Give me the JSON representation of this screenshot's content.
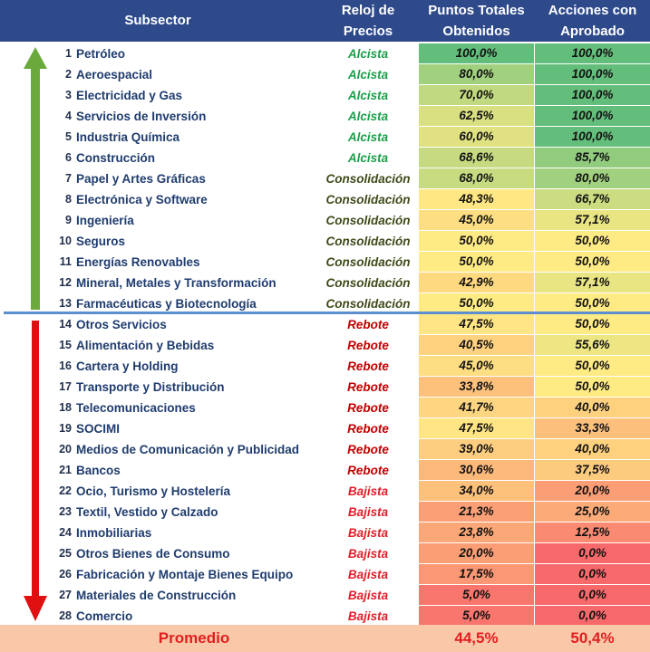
{
  "header": {
    "col_subsector": "Subsector",
    "col_reloj_line1": "Reloj de",
    "col_reloj_line2": "Precios",
    "col_puntos_line1": "Puntos Totales",
    "col_puntos_line2": "Obtenidos",
    "col_acciones_line1": "Acciones con",
    "col_acciones_line2": "Aprobado"
  },
  "colors": {
    "header_bg": "#2f4a8a",
    "alcista": "#1aa04a",
    "consolidacion": "#3d4a18",
    "rebote": "#c00000",
    "bajista": "#e0202a",
    "green_arrow": "#6aaa3c",
    "red_arrow": "#e01010",
    "divider": "#5b8fd0",
    "footer_bg": "#f9c8a8"
  },
  "rows": [
    {
      "num": "1",
      "name": "Petróleo",
      "trend": "Alcista",
      "puntos": "100,0%",
      "acciones": "100,0%",
      "puntos_val": 100.0,
      "acciones_val": 100.0
    },
    {
      "num": "2",
      "name": "Aeroespacial",
      "trend": "Alcista",
      "puntos": "80,0%",
      "acciones": "100,0%",
      "puntos_val": 80.0,
      "acciones_val": 100.0
    },
    {
      "num": "3",
      "name": "Electricidad y Gas",
      "trend": "Alcista",
      "puntos": "70,0%",
      "acciones": "100,0%",
      "puntos_val": 70.0,
      "acciones_val": 100.0
    },
    {
      "num": "4",
      "name": "Servicios de Inversión",
      "trend": "Alcista",
      "puntos": "62,5%",
      "acciones": "100,0%",
      "puntos_val": 62.5,
      "acciones_val": 100.0
    },
    {
      "num": "5",
      "name": "Industria Química",
      "trend": "Alcista",
      "puntos": "60,0%",
      "acciones": "100,0%",
      "puntos_val": 60.0,
      "acciones_val": 100.0
    },
    {
      "num": "6",
      "name": "Construcción",
      "trend": "Alcista",
      "puntos": "68,6%",
      "acciones": "85,7%",
      "puntos_val": 68.6,
      "acciones_val": 85.7
    },
    {
      "num": "7",
      "name": "Papel y Artes Gráficas",
      "trend": "Consolidación",
      "puntos": "68,0%",
      "acciones": "80,0%",
      "puntos_val": 68.0,
      "acciones_val": 80.0
    },
    {
      "num": "8",
      "name": "Electrónica y Software",
      "trend": "Consolidación",
      "puntos": "48,3%",
      "acciones": "66,7%",
      "puntos_val": 48.3,
      "acciones_val": 66.7
    },
    {
      "num": "9",
      "name": "Ingeniería",
      "trend": "Consolidación",
      "puntos": "45,0%",
      "acciones": "57,1%",
      "puntos_val": 45.0,
      "acciones_val": 57.1
    },
    {
      "num": "10",
      "name": "Seguros",
      "trend": "Consolidación",
      "puntos": "50,0%",
      "acciones": "50,0%",
      "puntos_val": 50.0,
      "acciones_val": 50.0
    },
    {
      "num": "11",
      "name": "Energías Renovables",
      "trend": "Consolidación",
      "puntos": "50,0%",
      "acciones": "50,0%",
      "puntos_val": 50.0,
      "acciones_val": 50.0
    },
    {
      "num": "12",
      "name": "Mineral, Metales y Transformación",
      "trend": "Consolidación",
      "puntos": "42,9%",
      "acciones": "57,1%",
      "puntos_val": 42.9,
      "acciones_val": 57.1
    },
    {
      "num": "13",
      "name": "Farmacéuticas y Biotecnología",
      "trend": "Consolidación",
      "puntos": "50,0%",
      "acciones": "50,0%",
      "puntos_val": 50.0,
      "acciones_val": 50.0
    },
    {
      "num": "14",
      "name": "Otros Servicios",
      "trend": "Rebote",
      "puntos": "47,5%",
      "acciones": "50,0%",
      "puntos_val": 47.5,
      "acciones_val": 50.0
    },
    {
      "num": "15",
      "name": "Alimentación y Bebidas",
      "trend": "Rebote",
      "puntos": "40,5%",
      "acciones": "55,6%",
      "puntos_val": 40.5,
      "acciones_val": 55.6
    },
    {
      "num": "16",
      "name": "Cartera y Holding",
      "trend": "Rebote",
      "puntos": "45,0%",
      "acciones": "50,0%",
      "puntos_val": 45.0,
      "acciones_val": 50.0
    },
    {
      "num": "17",
      "name": "Transporte y Distribución",
      "trend": "Rebote",
      "puntos": "33,8%",
      "acciones": "50,0%",
      "puntos_val": 33.8,
      "acciones_val": 50.0
    },
    {
      "num": "18",
      "name": "Telecomunicaciones",
      "trend": "Rebote",
      "puntos": "41,7%",
      "acciones": "40,0%",
      "puntos_val": 41.7,
      "acciones_val": 40.0
    },
    {
      "num": "19",
      "name": "SOCIMI",
      "trend": "Rebote",
      "puntos": "47,5%",
      "acciones": "33,3%",
      "puntos_val": 47.5,
      "acciones_val": 33.3
    },
    {
      "num": "20",
      "name": "Medios de Comunicación y Publicidad",
      "trend": "Rebote",
      "puntos": "39,0%",
      "acciones": "40,0%",
      "puntos_val": 39.0,
      "acciones_val": 40.0
    },
    {
      "num": "21",
      "name": "Bancos",
      "trend": "Rebote",
      "puntos": "30,6%",
      "acciones": "37,5%",
      "puntos_val": 30.6,
      "acciones_val": 37.5
    },
    {
      "num": "22",
      "name": "Ocio, Turismo y Hostelería",
      "trend": "Bajista",
      "puntos": "34,0%",
      "acciones": "20,0%",
      "puntos_val": 34.0,
      "acciones_val": 20.0
    },
    {
      "num": "23",
      "name": "Textil, Vestido y Calzado",
      "trend": "Bajista",
      "puntos": "21,3%",
      "acciones": "25,0%",
      "puntos_val": 21.3,
      "acciones_val": 25.0
    },
    {
      "num": "24",
      "name": "Inmobiliarias",
      "trend": "Bajista",
      "puntos": "23,8%",
      "acciones": "12,5%",
      "puntos_val": 23.8,
      "acciones_val": 12.5
    },
    {
      "num": "25",
      "name": "Otros Bienes de Consumo",
      "trend": "Bajista",
      "puntos": "20,0%",
      "acciones": "0,0%",
      "puntos_val": 20.0,
      "acciones_val": 0.0
    },
    {
      "num": "26",
      "name": "Fabricación y Montaje Bienes Equipo",
      "trend": "Bajista",
      "puntos": "17,5%",
      "acciones": "0,0%",
      "puntos_val": 17.5,
      "acciones_val": 0.0
    },
    {
      "num": "27",
      "name": "Materiales de Construcción",
      "trend": "Bajista",
      "puntos": "5,0%",
      "acciones": "0,0%",
      "puntos_val": 5.0,
      "acciones_val": 0.0
    },
    {
      "num": "28",
      "name": "Comercio",
      "trend": "Bajista",
      "puntos": "5,0%",
      "acciones": "0,0%",
      "puntos_val": 5.0,
      "acciones_val": 0.0
    }
  ],
  "footer": {
    "label": "Promedio",
    "puntos": "44,5%",
    "acciones": "50,4%"
  }
}
